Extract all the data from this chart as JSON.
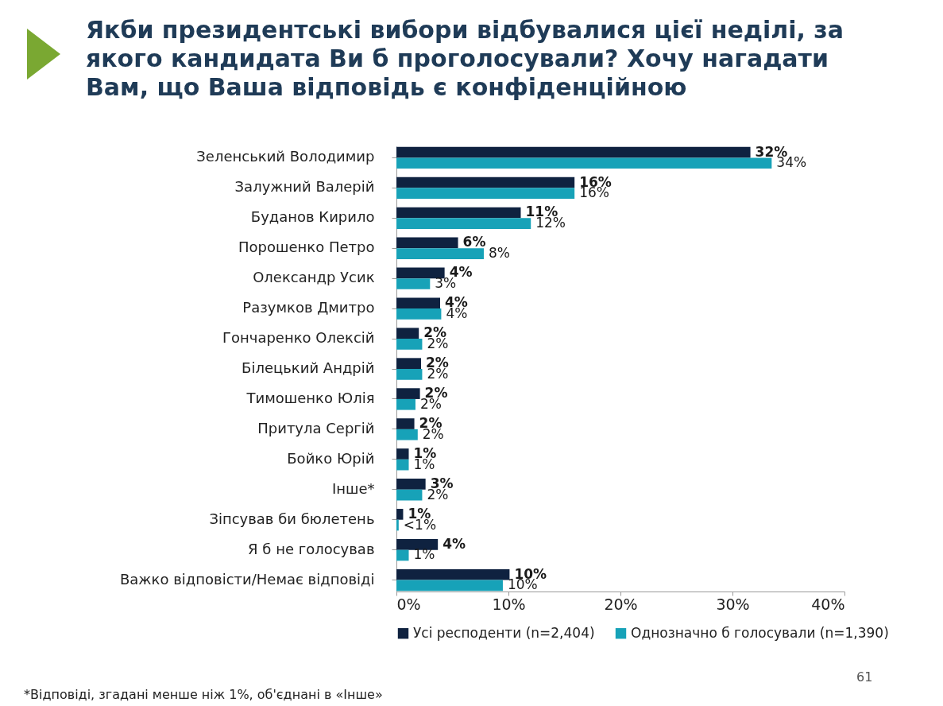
{
  "chart_data": {
    "type": "bar",
    "orientation": "horizontal",
    "title": "Якби президентські вибори відбувалися цієї неділі, за якого кандидата Ви б проголосували? Хочу нагадати Вам, що Ваша відповідь є конфіденційною",
    "categories": [
      "Зеленський Володимир",
      "Залужний Валерій",
      "Буданов Кирило",
      "Порошенко Петро",
      "Олександр Усик",
      "Разумков Дмитро",
      "Гончаренко Олексій",
      "Білецький Андрій",
      "Тимошенко Юлія",
      "Притула Сергій",
      "Бойко Юрій",
      "Інше*",
      "Зіпсував би бюлетень",
      "Я б не голосував",
      "Важко відповісти/Немає відповіді"
    ],
    "series": [
      {
        "name": "Усі респоденти (n=2,404)",
        "color": "#0f2240",
        "values": [
          31.6,
          15.9,
          11.1,
          5.5,
          4.3,
          3.9,
          2.0,
          2.2,
          2.1,
          1.6,
          1.1,
          2.6,
          0.6,
          3.7,
          10.1
        ],
        "value_labels": [
          "32%",
          "16%",
          "11%",
          "6%",
          "4%",
          "4%",
          "2%",
          "2%",
          "2%",
          "2%",
          "1%",
          "3%",
          "1%",
          "4%",
          "10%"
        ]
      },
      {
        "name": "Однозначно б голосували (n=1,390)",
        "color": "#17a2b8",
        "values": [
          33.5,
          15.9,
          12.0,
          7.8,
          3.0,
          4.0,
          2.3,
          2.3,
          1.7,
          1.9,
          1.1,
          2.3,
          0.2,
          1.1,
          9.5
        ],
        "value_labels": [
          "34%",
          "16%",
          "12%",
          "8%",
          "3%",
          "4%",
          "2%",
          "2%",
          "2%",
          "2%",
          "1%",
          "2%",
          "<1%",
          "1%",
          "10%"
        ]
      }
    ],
    "xlim": [
      0,
      40
    ],
    "xticks": [
      {
        "value": 0,
        "label": "0%"
      },
      {
        "value": 10,
        "label": "10%"
      },
      {
        "value": 20,
        "label": "20%"
      },
      {
        "value": 30,
        "label": "30%"
      },
      {
        "value": 40,
        "label": "40%"
      }
    ],
    "grid": false,
    "legend": "bottom",
    "annotations": [
      "61",
      "*Відповіді, згадані менше ніж 1%, об'єднані в «Інше»"
    ]
  }
}
